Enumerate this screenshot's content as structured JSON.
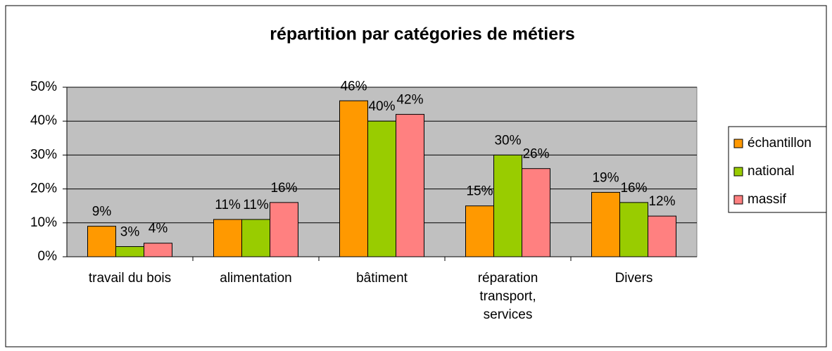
{
  "chart_data": {
    "type": "bar",
    "title": "répartition par catégories de métiers",
    "categories": [
      "travail du bois",
      "alimentation",
      "bâtiment",
      "réparation\ntransport,\nservices",
      "Divers"
    ],
    "series": [
      {
        "name": "échantillon",
        "color": "#ff9900",
        "values": [
          9,
          11,
          46,
          15,
          19
        ],
        "value_labels": [
          "9%",
          "11%",
          "46%",
          "15%",
          "19%"
        ]
      },
      {
        "name": "national",
        "color": "#99cc00",
        "values": [
          3,
          11,
          40,
          30,
          16
        ],
        "value_labels": [
          "3%",
          "11%",
          "40%",
          "30%",
          "16%"
        ]
      },
      {
        "name": "massif",
        "color": "#ff8080",
        "values": [
          4,
          16,
          42,
          26,
          12
        ],
        "value_labels": [
          "4%",
          "16%",
          "42%",
          "26%",
          "12%"
        ]
      }
    ],
    "ylim": [
      0,
      50
    ],
    "yticks": [
      {
        "value": 0,
        "label": "0%"
      },
      {
        "value": 10,
        "label": "10%"
      },
      {
        "value": 20,
        "label": "20%"
      },
      {
        "value": 30,
        "label": "30%"
      },
      {
        "value": 40,
        "label": "40%"
      },
      {
        "value": 50,
        "label": "50%"
      }
    ],
    "grid": true,
    "legend": "right"
  }
}
